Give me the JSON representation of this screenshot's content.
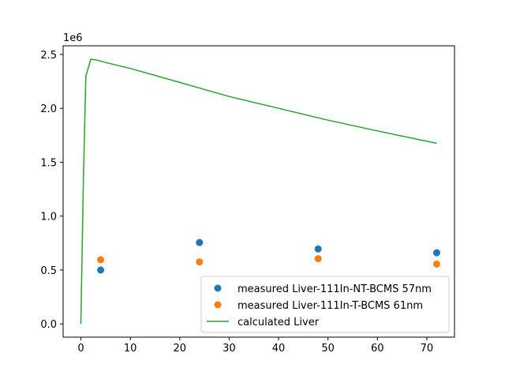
{
  "chart_data": {
    "type": "line",
    "title": "",
    "xlabel": "",
    "ylabel": "",
    "y_offset_label": "1e6",
    "xlim": [
      -3.6,
      75.6
    ],
    "ylim": [
      -0.123,
      2.58
    ],
    "y_scale": 1000000,
    "x_ticks": [
      0,
      10,
      20,
      30,
      40,
      50,
      60,
      70
    ],
    "y_ticks": [
      0.0,
      0.5,
      1.0,
      1.5,
      2.0,
      2.5
    ],
    "y_tick_labels": [
      "0.0",
      "0.5",
      "1.0",
      "1.5",
      "2.0",
      "2.5"
    ],
    "legend_position": "bottom-right",
    "grid": false,
    "series": [
      {
        "name": "measured Liver-111In-NT-BCMS 57nm",
        "kind": "scatter",
        "color": "#1f77b4",
        "x": [
          4,
          24,
          48,
          72
        ],
        "y": [
          0.5,
          0.755,
          0.695,
          0.66
        ]
      },
      {
        "name": "measured Liver-111In-T-BCMS 61nm",
        "kind": "scatter",
        "color": "#ff7f0e",
        "x": [
          4,
          24,
          48,
          72
        ],
        "y": [
          0.595,
          0.575,
          0.605,
          0.555
        ]
      },
      {
        "name": "calculated Liver",
        "kind": "line",
        "color": "#2ca02c",
        "x": [
          0,
          0.5,
          1,
          2,
          3,
          5,
          10,
          20,
          30,
          40,
          50,
          60,
          72
        ],
        "y": [
          0.0,
          1.35,
          2.3,
          2.455,
          2.45,
          2.425,
          2.37,
          2.24,
          2.11,
          2.0,
          1.89,
          1.79,
          1.675
        ]
      }
    ]
  }
}
